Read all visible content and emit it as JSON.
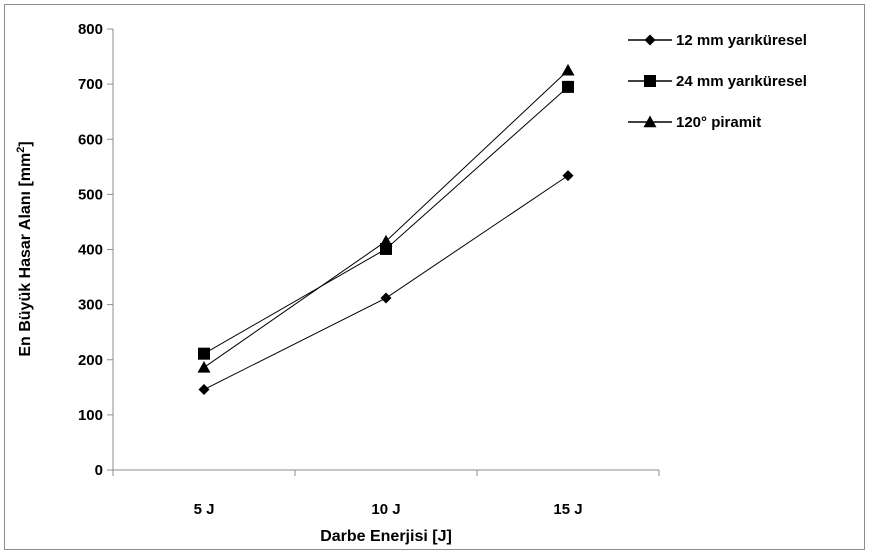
{
  "chart_data": {
    "type": "line",
    "categories": [
      "5 J",
      "10 J",
      "15 J"
    ],
    "series": [
      {
        "name": "12 mm yarıküresel",
        "marker": "diamond",
        "values": [
          146,
          312,
          534
        ]
      },
      {
        "name": "24 mm yarıküresel",
        "marker": "square",
        "values": [
          211,
          401,
          695
        ]
      },
      {
        "name": "120° piramit",
        "marker": "triangle",
        "values": [
          186,
          415,
          725
        ]
      }
    ],
    "xlabel": "Darbe Enerjisi [J]",
    "ylabel_main": "En Büyük Hasar Alanı [mm",
    "ylabel_sup": "2",
    "ylabel_end": "]",
    "ylim": [
      0,
      800
    ],
    "yticks": [
      0,
      100,
      200,
      300,
      400,
      500,
      600,
      700,
      800
    ],
    "grid": false,
    "legend_position": "top-right",
    "line_color": "#000000"
  }
}
